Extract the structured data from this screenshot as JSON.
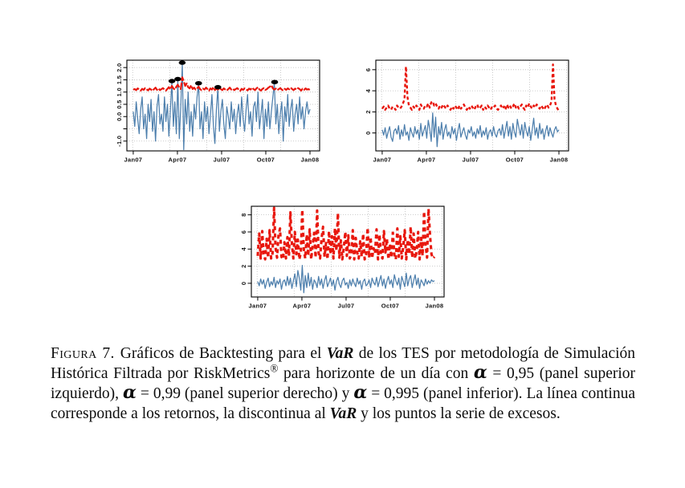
{
  "caption": {
    "parts": [
      {
        "text": "Figura 7."
      },
      {
        "text": "Gráficos de Backtesting para el "
      },
      {
        "text": "VaR"
      },
      {
        "text": " de los TES por metodología de Simulación Histórica Filtrada por RiskMetrics"
      },
      {
        "text": "®"
      },
      {
        "text": " para horizonte de un día con "
      },
      {
        "text": "α"
      },
      {
        "text": " = 0,95 (panel superior izquierdo), "
      },
      {
        "text": "α"
      },
      {
        "text": " = 0,99 (panel superior derecho) y "
      },
      {
        "text": "α"
      },
      {
        "text": " = 0,995 (panel inferior). La línea continua corresponde a los retornos, la discontinua al "
      },
      {
        "text": "VaR"
      },
      {
        "text": " y los puntos la serie de excesos."
      }
    ]
  },
  "chart_data": [
    {
      "type": "line",
      "panel": "top-left",
      "alpha_level": "0,95",
      "x_tick_labels": [
        "Jan07",
        "Apr07",
        "Jul07",
        "Oct07",
        "Jan08"
      ],
      "x_ticks": [
        0,
        0.25,
        0.5,
        0.75,
        1
      ],
      "y_ticks": [
        -1.0,
        -0.5,
        0.0,
        0.5,
        1.0,
        1.5,
        2.0
      ],
      "y_tick_labels": [
        "-1.0",
        "",
        "0.0",
        "0.5",
        "1.0",
        "1.5",
        "2.0"
      ],
      "ylim": [
        -1.4,
        2.3
      ],
      "grid_x": [
        0.03,
        0.222,
        0.414,
        0.606,
        0.798,
        0.99
      ],
      "grid_on": true,
      "series": [
        {
          "name": "retornos",
          "role": "línea continua",
          "color": "#4d7fad",
          "style": "returns",
          "values": [
            0.2,
            -0.4,
            0.6,
            -0.1,
            -0.7,
            0.3,
            0.8,
            -0.5,
            0.1,
            -0.9,
            0.5,
            -0.2,
            0.7,
            -0.6,
            0.2,
            -1.0,
            0.4,
            0.9,
            -0.3,
            0.1,
            -0.6,
            0.8,
            -0.2,
            0.5,
            -0.8,
            0.3,
            1.42,
            -0.4,
            0.6,
            -0.7,
            1.5,
            -0.9,
            0.4,
            2.15,
            -1.35,
            0.7,
            -0.3,
            1.0,
            -0.6,
            0.2,
            -0.8,
            0.5,
            -0.1,
            0.8,
            1.33,
            -0.5,
            0.2,
            -0.9,
            0.6,
            -0.2,
            0.4,
            -0.7,
            0.1,
            0.9,
            -0.4,
            -1.1,
            0.3,
            1.17,
            -0.6,
            0.2,
            0.7,
            -0.3,
            -0.9,
            0.4,
            0.0,
            -0.5,
            0.6,
            -0.2,
            0.3,
            -0.7,
            0.1,
            0.5,
            -0.4,
            0.8,
            -0.1,
            -0.6,
            0.3,
            0.9,
            -0.3,
            0.2,
            -0.8,
            0.4,
            0.6,
            -0.2,
            1.0,
            -0.5,
            0.1,
            0.7,
            -0.9,
            0.3,
            -0.4,
            0.6,
            -0.5,
            0.2,
            0.8,
            1.38,
            -0.3,
            0.5,
            -0.7,
            0.1,
            0.6,
            -1.0,
            0.4,
            -0.2,
            0.9,
            -0.4,
            0.3,
            0.7,
            -0.6,
            0.1,
            0.5,
            -0.3,
            0.8,
            -0.1,
            0.4,
            -0.5,
            0.2,
            0.6,
            0.1,
            0.3
          ]
        },
        {
          "name": "VaR",
          "role": "línea discontinua",
          "color": "#e8170d",
          "style": "var-dense",
          "values": [
            1.1,
            1.12,
            1.08,
            1.15,
            1.1,
            1.06,
            1.13,
            1.09,
            1.16,
            1.11,
            1.07,
            1.14,
            1.1,
            1.05,
            1.12,
            1.18,
            1.09,
            1.15,
            1.08,
            1.12,
            1.16,
            1.1,
            1.06,
            1.13,
            1.2,
            1.11,
            1.25,
            1.15,
            1.1,
            1.22,
            1.3,
            1.18,
            1.12,
            1.6,
            1.45,
            1.25,
            1.35,
            1.2,
            1.15,
            1.28,
            1.12,
            1.18,
            1.1,
            1.15,
            1.22,
            1.12,
            1.08,
            1.14,
            1.1,
            1.18,
            1.12,
            1.06,
            1.15,
            1.1,
            1.2,
            1.08,
            1.14,
            1.1,
            1.16,
            1.12,
            1.08,
            1.15,
            1.1,
            1.06,
            1.12,
            1.18,
            1.1,
            1.14,
            1.08,
            1.12,
            1.16,
            1.1,
            1.05,
            1.13,
            1.09,
            1.15,
            1.11,
            1.07,
            1.14,
            1.1,
            1.18,
            1.12,
            1.08,
            1.15,
            1.2,
            1.1,
            1.06,
            1.13,
            1.16,
            1.09,
            1.12,
            1.18,
            1.22,
            1.28,
            1.15,
            1.1,
            1.14,
            1.08,
            1.12,
            1.16,
            1.1,
            1.06,
            1.13,
            1.09,
            1.15,
            1.11,
            1.18,
            1.12,
            1.08,
            1.14,
            1.1,
            1.16,
            1.12,
            1.06,
            1.13,
            1.09,
            1.15,
            1.1,
            1.12,
            1.08
          ]
        },
        {
          "name": "excesos",
          "role": "puntos",
          "color": "#000000",
          "style": "excess-points",
          "points": [
            [
              0.219,
              1.45
            ],
            [
              0.252,
              1.53
            ],
            [
              0.277,
              2.2
            ],
            [
              0.37,
              1.36
            ],
            [
              0.479,
              1.2
            ],
            [
              0.8,
              1.41
            ]
          ]
        }
      ]
    },
    {
      "type": "line",
      "panel": "top-right",
      "alpha_level": "0,99",
      "x_tick_labels": [
        "Jan07",
        "Apr07",
        "Jul07",
        "Oct07",
        "Jan08"
      ],
      "x_ticks": [
        0,
        0.25,
        0.5,
        0.75,
        1
      ],
      "y_ticks": [
        0,
        2,
        4,
        6
      ],
      "y_tick_labels": [
        "0",
        "2",
        "4",
        "6"
      ],
      "ylim": [
        -1.7,
        6.9
      ],
      "grid_x": [
        0.03,
        0.222,
        0.414,
        0.606,
        0.798,
        0.99
      ],
      "grid_on": true,
      "series": [
        {
          "name": "retornos",
          "role": "línea continua",
          "color": "#4d7fad",
          "style": "returns",
          "values": [
            0.3,
            -0.2,
            0.5,
            -0.5,
            0.1,
            0.6,
            -0.4,
            -0.8,
            0.2,
            0.4,
            -0.1,
            0.7,
            -0.6,
            0.3,
            -0.3,
            0.8,
            -0.2,
            0.1,
            -0.7,
            0.5,
            0.0,
            -0.4,
            0.6,
            -0.1,
            0.3,
            -0.6,
            0.9,
            -0.3,
            0.2,
            0.7,
            -0.5,
            1.2,
            0.4,
            -0.8,
            1.9,
            -0.4,
            1.5,
            -1.3,
            0.6,
            -0.2,
            1.0,
            -0.6,
            0.3,
            0.8,
            -0.3,
            0.1,
            -0.5,
            0.6,
            -0.1,
            0.4,
            -0.7,
            0.2,
            0.9,
            -0.4,
            0.1,
            0.5,
            -0.2,
            -0.6,
            0.3,
            0.0,
            0.6,
            -0.3,
            0.1,
            -0.5,
            0.4,
            -0.1,
            0.7,
            -0.4,
            0.2,
            -0.2,
            0.5,
            -0.6,
            0.1,
            0.3,
            -0.3,
            0.6,
            -0.1,
            -0.4,
            0.2,
            0.4,
            -0.2,
            0.8,
            -0.5,
            0.3,
            1.1,
            -0.3,
            0.6,
            -0.6,
            0.9,
            0.1,
            -0.4,
            1.3,
            0.5,
            -0.2,
            0.8,
            -0.5,
            1.0,
            0.2,
            -0.3,
            0.6,
            -0.7,
            0.3,
            1.4,
            -0.2,
            0.5,
            -0.5,
            0.9,
            -0.1,
            0.4,
            -0.6,
            0.2,
            0.7,
            -0.3,
            0.5,
            0.0,
            -0.4,
            0.3,
            0.6,
            0.1,
            0.3
          ]
        },
        {
          "name": "VaR",
          "role": "línea discontinua",
          "color": "#e8170d",
          "style": "var-dashed",
          "values": [
            2.3,
            2.5,
            2.2,
            2.4,
            2.6,
            2.3,
            2.2,
            2.5,
            2.4,
            2.2,
            2.6,
            2.4,
            2.3,
            2.5,
            2.8,
            3.2,
            6.3,
            3.4,
            2.6,
            2.4,
            2.2,
            2.5,
            2.3,
            2.6,
            2.4,
            2.2,
            2.7,
            2.4,
            2.3,
            2.6,
            2.5,
            2.8,
            2.4,
            2.9,
            3.0,
            2.6,
            2.8,
            2.5,
            2.3,
            2.6,
            2.4,
            2.7,
            2.5,
            2.3,
            2.6,
            2.4,
            2.2,
            2.5,
            2.3,
            2.6,
            2.4,
            2.2,
            2.6,
            2.3,
            2.5,
            2.7,
            2.4,
            2.2,
            2.5,
            2.3,
            2.6,
            2.4,
            2.2,
            2.5,
            2.7,
            2.3,
            2.4,
            2.6,
            2.2,
            2.5,
            2.3,
            2.6,
            2.4,
            2.2,
            2.5,
            2.4,
            2.6,
            2.3,
            2.2,
            2.4,
            2.6,
            2.3,
            2.5,
            2.2,
            2.7,
            2.4,
            2.6,
            2.3,
            2.5,
            2.8,
            2.4,
            2.6,
            2.3,
            2.5,
            2.7,
            2.4,
            2.2,
            2.6,
            2.4,
            2.8,
            2.5,
            2.3,
            2.6,
            2.4,
            2.7,
            2.5,
            2.3,
            2.6,
            2.4,
            2.2,
            2.5,
            2.7,
            2.4,
            2.6,
            3.0,
            6.5,
            3.2,
            2.6,
            2.3,
            2.1
          ]
        }
      ]
    },
    {
      "type": "line",
      "panel": "bottom",
      "alpha_level": "0,995",
      "x_tick_labels": [
        "Jan07",
        "Apr07",
        "Jul07",
        "Oct07",
        "Jan08"
      ],
      "x_ticks": [
        0,
        0.25,
        0.5,
        0.75,
        1
      ],
      "y_ticks": [
        0,
        2,
        4,
        6,
        8
      ],
      "y_tick_labels": [
        "0",
        "2",
        "4",
        "6",
        "8"
      ],
      "ylim": [
        -1.6,
        9.0
      ],
      "grid_x": [
        0.03,
        0.222,
        0.414,
        0.606,
        0.798,
        0.99
      ],
      "grid_on": true,
      "series": [
        {
          "name": "retornos",
          "role": "línea continua",
          "color": "#4d7fad",
          "style": "returns",
          "values": [
            0.2,
            -0.3,
            0.5,
            -0.1,
            0.4,
            -0.6,
            0.1,
            0.6,
            -0.4,
            0.2,
            -0.2,
            0.7,
            -0.5,
            0.3,
            -0.1,
            0.5,
            -0.7,
            0.2,
            0.4,
            -0.3,
            0.8,
            -0.2,
            0.6,
            -0.6,
            0.3,
            1.1,
            -0.4,
            1.5,
            0.6,
            -0.8,
            2.1,
            -1.1,
            0.9,
            -0.5,
            1.2,
            -0.3,
            0.7,
            -0.7,
            0.4,
            0.1,
            -0.5,
            0.8,
            -0.2,
            0.5,
            -0.6,
            0.3,
            0.9,
            -0.4,
            0.1,
            0.6,
            -0.3,
            0.4,
            -0.8,
            0.2,
            0.7,
            -0.1,
            -0.5,
            0.3,
            0.6,
            -0.2,
            0.1,
            -0.6,
            0.4,
            -0.3,
            0.5,
            0.0,
            -0.4,
            0.6,
            -0.1,
            0.3,
            -0.7,
            0.2,
            0.5,
            -0.3,
            -0.1,
            0.4,
            -0.5,
            0.6,
            0.1,
            -0.2,
            0.7,
            -0.4,
            0.3,
            0.9,
            -0.3,
            0.5,
            -0.6,
            0.2,
            0.8,
            -0.1,
            0.4,
            -0.5,
            1.0,
            0.3,
            -0.2,
            0.6,
            -0.7,
            0.8,
            0.2,
            -0.4,
            1.2,
            -0.3,
            0.5,
            0.9,
            -0.5,
            0.3,
            1.0,
            -0.2,
            0.6,
            -0.6,
            0.4,
            0.1,
            -0.3,
            0.5,
            -0.1,
            0.3,
            0.0,
            0.4,
            0.2,
            0.3
          ]
        },
        {
          "name": "VaR",
          "role": "línea discontinua",
          "color": "#e8170d",
          "style": "var-thick-dashed",
          "values": [
            3.2,
            5.8,
            2.9,
            6.1,
            3.4,
            2.8,
            5.2,
            3.0,
            6.2,
            2.9,
            3.5,
            8.8,
            4.2,
            3.0,
            5.6,
            6.4,
            3.1,
            2.8,
            4.8,
            2.9,
            5.4,
            3.2,
            8.3,
            4.6,
            2.9,
            6.0,
            3.4,
            5.1,
            2.8,
            3.6,
            8.6,
            4.0,
            2.9,
            5.7,
            3.2,
            6.3,
            2.8,
            4.4,
            5.9,
            3.0,
            8.5,
            3.6,
            2.9,
            5.2,
            6.6,
            3.1,
            4.7,
            2.8,
            6.1,
            3.4,
            5.5,
            2.9,
            6.4,
            3.8,
            8.2,
            3.0,
            5.0,
            2.8,
            4.2,
            6.0,
            3.2,
            5.6,
            2.9,
            3.4,
            6.2,
            2.8,
            5.3,
            3.6,
            2.9,
            4.9,
            3.1,
            5.8,
            2.8,
            3.3,
            6.5,
            3.0,
            5.4,
            2.9,
            4.1,
            3.5,
            6.3,
            2.8,
            5.7,
            3.2,
            2.9,
            6.1,
            3.6,
            5.2,
            2.8,
            4.6,
            3.0,
            5.9,
            3.3,
            2.8,
            6.4,
            3.1,
            5.5,
            2.9,
            4.3,
            6.2,
            2.8,
            5.1,
            3.4,
            6.6,
            3.0,
            5.8,
            2.9,
            3.7,
            6.0,
            2.8,
            5.3,
            3.2,
            8.4,
            4.5,
            3.0,
            8.7,
            5.6,
            3.4,
            2.9,
            3.1
          ]
        }
      ]
    }
  ],
  "colors": {
    "returns_line": "#4d7fad",
    "var_line": "#e8170d",
    "excess_points": "#000000",
    "grid": "#bdbdbd",
    "frame": "#000000"
  }
}
